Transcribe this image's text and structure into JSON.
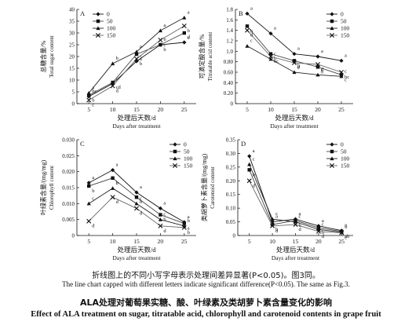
{
  "figure": {
    "caption_zh": "折线图上的不同小写字母表示处理间差异显著(P<0.05)。图3同。",
    "caption_en": "The line chart capped with different letters indicate significant difference(P<0.05). The same as Fig.3.",
    "title_zh": "ALA处理对葡萄果实糖、酸、叶绿素及类胡萝卜素含量变化的影响",
    "title_en": "Effect of ALA treatment on sugar, titratable acid, chlorophyll and carotenoid contents in grape fruit"
  },
  "chart_data": [
    {
      "panel": "A",
      "type": "line",
      "ylabel_zh": "总糖含量/%",
      "ylabel_en": "Total sugar content",
      "xlabel_zh": "处理后天数/d",
      "xlabel_en": "Days after treatment",
      "x": [
        5,
        10,
        15,
        20,
        25
      ],
      "ylim": [
        0,
        40
      ],
      "yticks": [
        0,
        5,
        10,
        15,
        20,
        25,
        30,
        35,
        40
      ],
      "legend_position": "top-left",
      "series": [
        {
          "name": "0",
          "marker": "diamond",
          "values": [
            3.0,
            8.5,
            18.0,
            25.0,
            26.0
          ],
          "letters": [
            "bc",
            "c",
            "c",
            "b",
            "d"
          ]
        },
        {
          "name": "50",
          "marker": "square",
          "values": [
            3.5,
            9.0,
            21.0,
            25.0,
            30.0
          ],
          "letters": [
            "b",
            "cd",
            "a",
            "b",
            "c"
          ]
        },
        {
          "name": "100",
          "marker": "triangle",
          "values": [
            4.5,
            17.0,
            22.0,
            31.0,
            36.5
          ],
          "letters": [
            "a",
            "b",
            "a",
            "a",
            "a"
          ]
        },
        {
          "name": "150",
          "marker": "cross",
          "values": [
            1.5,
            7.5,
            19.0,
            27.0,
            33.0
          ],
          "letters": [
            "c",
            "d",
            "b",
            "c",
            "b"
          ]
        }
      ]
    },
    {
      "panel": "B",
      "type": "line",
      "ylabel_zh": "可滴定酸含量/%",
      "ylabel_en": "Titratable acid content",
      "xlabel_zh": "处理后天数/d",
      "xlabel_en": "Days after treatment",
      "x": [
        5,
        10,
        15,
        20,
        25
      ],
      "ylim": [
        0,
        1.8
      ],
      "yticks": [
        0,
        0.2,
        0.4,
        0.6,
        0.8,
        1.0,
        1.2,
        1.4,
        1.6,
        1.8
      ],
      "legend_position": "top-right",
      "series": [
        {
          "name": "0",
          "marker": "diamond",
          "values": [
            1.72,
            1.34,
            0.95,
            0.9,
            0.82
          ],
          "letters": [
            "a",
            "a",
            "a",
            "a",
            "a"
          ]
        },
        {
          "name": "50",
          "marker": "square",
          "values": [
            1.48,
            0.95,
            0.82,
            0.7,
            0.55
          ],
          "letters": [
            "b",
            "b",
            "b",
            "b",
            "c"
          ]
        },
        {
          "name": "100",
          "marker": "triangle",
          "values": [
            1.1,
            0.85,
            0.6,
            0.55,
            0.52
          ],
          "letters": [
            "c",
            "c",
            "d",
            "d",
            "c"
          ]
        },
        {
          "name": "150",
          "marker": "cross",
          "values": [
            1.4,
            0.9,
            0.78,
            0.75,
            0.6
          ],
          "letters": [
            "d",
            "bc",
            "c",
            "c",
            "bc"
          ]
        }
      ]
    },
    {
      "panel": "C",
      "type": "line",
      "ylabel_zh": "叶绿素含量/(mg/mg)",
      "ylabel_en": "Chlorophyll content",
      "xlabel_zh": "处理后天数/d",
      "xlabel_en": "Days after treatment",
      "x": [
        5,
        10,
        15,
        20,
        25
      ],
      "ylim": [
        0,
        0.03
      ],
      "yticks": [
        0,
        0.005,
        0.01,
        0.015,
        0.02,
        0.025,
        0.03
      ],
      "legend_position": "top-right",
      "series": [
        {
          "name": "0",
          "marker": "diamond",
          "values": [
            0.0165,
            0.0205,
            0.0135,
            0.0085,
            0.0042
          ],
          "letters": [
            "a",
            "a",
            "a",
            "a",
            "a"
          ]
        },
        {
          "name": "50",
          "marker": "square",
          "values": [
            0.0155,
            0.018,
            0.012,
            0.0065,
            0.0038
          ],
          "letters": [
            "b",
            "b",
            "b",
            "b",
            "a"
          ]
        },
        {
          "name": "100",
          "marker": "triangle",
          "values": [
            0.01,
            0.0148,
            0.01,
            0.005,
            0.003
          ],
          "letters": [
            "c",
            "c",
            "c",
            "c",
            "b"
          ]
        },
        {
          "name": "150",
          "marker": "cross",
          "values": [
            0.0045,
            0.012,
            0.0085,
            0.003,
            0.0025
          ],
          "letters": [
            "d",
            "d",
            "d",
            "d",
            "b"
          ]
        }
      ]
    },
    {
      "panel": "D",
      "type": "line",
      "ylabel_zh": "类胡萝卜素含量/(mg/mg)",
      "ylabel_en": "Carotenoid content",
      "xlabel_zh": "处理后天数/d",
      "xlabel_en": "Days after treatment",
      "x": [
        5,
        10,
        15,
        20,
        25
      ],
      "ylim": [
        0,
        0.35
      ],
      "yticks": [
        0,
        0.05,
        0.1,
        0.15,
        0.2,
        0.25,
        0.3,
        0.35
      ],
      "legend_position": "top-right",
      "series": [
        {
          "name": "0",
          "marker": "diamond",
          "values": [
            0.29,
            0.05,
            0.06,
            0.035,
            0.018
          ],
          "letters": [
            "a",
            "a",
            "a",
            "a",
            "a"
          ]
        },
        {
          "name": "50",
          "marker": "square",
          "values": [
            0.24,
            0.04,
            0.055,
            0.028,
            0.015
          ],
          "letters": [
            "b",
            "b",
            "b",
            "b",
            "ab"
          ]
        },
        {
          "name": "100",
          "marker": "triangle",
          "values": [
            0.26,
            0.06,
            0.05,
            0.022,
            0.012
          ],
          "letters": [
            "c",
            "c",
            "c",
            "c",
            "b"
          ]
        },
        {
          "name": "150",
          "marker": "cross",
          "values": [
            0.2,
            0.035,
            0.04,
            0.015,
            0.01
          ],
          "letters": [
            "d",
            "d",
            "d",
            "d",
            "c"
          ]
        }
      ]
    }
  ]
}
